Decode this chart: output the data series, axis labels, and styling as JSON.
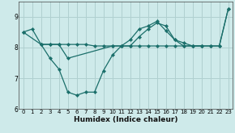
{
  "xlabel": "Humidex (Indice chaleur)",
  "background_color": "#ceeaea",
  "grid_color": "#b0d0d0",
  "line_color": "#1a6e6a",
  "xlim": [
    -0.5,
    23.5
  ],
  "ylim": [
    6.0,
    9.5
  ],
  "yticks": [
    6,
    7,
    8,
    9
  ],
  "xticks": [
    0,
    1,
    2,
    3,
    4,
    5,
    6,
    7,
    8,
    9,
    10,
    11,
    12,
    13,
    14,
    15,
    16,
    17,
    18,
    19,
    20,
    21,
    22,
    23
  ],
  "s1_x": [
    0,
    1,
    2,
    3,
    4,
    5,
    6,
    7,
    8,
    9,
    10,
    11,
    12,
    13,
    14,
    15,
    16,
    17,
    18,
    19,
    20,
    21,
    22,
    23
  ],
  "s1_y": [
    8.5,
    8.6,
    8.1,
    7.65,
    7.3,
    6.55,
    6.45,
    6.55,
    6.55,
    7.25,
    7.75,
    8.05,
    8.05,
    8.35,
    8.6,
    8.8,
    8.7,
    8.25,
    8.05,
    8.05,
    8.05,
    8.05,
    8.05,
    9.25
  ],
  "s2_x": [
    2,
    3,
    4,
    5,
    6,
    7,
    8,
    9,
    10,
    11,
    12,
    13,
    14,
    15,
    16,
    17,
    18,
    19,
    20
  ],
  "s2_y": [
    8.1,
    8.1,
    8.1,
    8.1,
    8.1,
    8.1,
    8.05,
    8.05,
    8.05,
    8.05,
    8.05,
    8.05,
    8.05,
    8.05,
    8.05,
    8.05,
    8.05,
    8.05,
    8.05
  ],
  "s3_x": [
    0,
    2,
    3,
    4,
    5,
    10,
    11,
    12,
    13,
    14,
    15,
    16,
    17,
    18,
    19,
    20,
    21,
    22,
    23
  ],
  "s3_y": [
    8.5,
    8.1,
    8.1,
    8.1,
    7.65,
    8.05,
    8.05,
    8.25,
    8.6,
    8.7,
    8.85,
    8.55,
    8.25,
    8.15,
    8.05,
    8.05,
    8.05,
    8.05,
    9.25
  ]
}
